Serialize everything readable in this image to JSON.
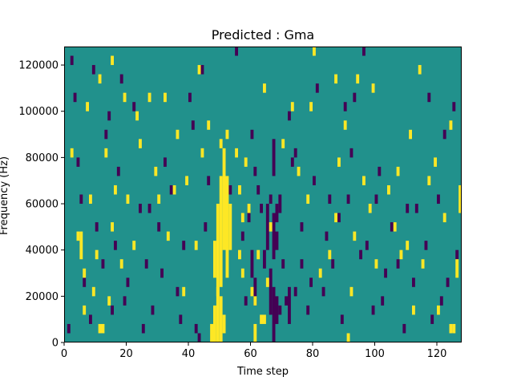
{
  "chart_data": {
    "type": "heatmap",
    "title": "Predicted : Gma",
    "xlabel": "Time step",
    "ylabel": "Frequency (Hz)",
    "xlim": [
      0,
      128
    ],
    "ylim": [
      0,
      128000
    ],
    "x_ticks": [
      0,
      20,
      40,
      60,
      80,
      100,
      120
    ],
    "y_ticks": [
      0,
      20000,
      40000,
      60000,
      80000,
      100000,
      120000
    ],
    "x_tick_labels": [
      "0",
      "20",
      "40",
      "60",
      "80",
      "100",
      "120"
    ],
    "y_tick_labels": [
      "0",
      "20000",
      "40000",
      "60000",
      "80000",
      "100000",
      "120000"
    ],
    "grid": false,
    "colors": {
      "background_value": "#21918c",
      "high_value": "#fde725",
      "low_value": "#440154"
    },
    "cell_height_hz": 4000,
    "high_cells": [
      [
        47,
        0,
        8000
      ],
      [
        48,
        0,
        16000
      ],
      [
        49,
        0,
        24000
      ],
      [
        50,
        0,
        20000
      ],
      [
        51,
        4000,
        12000
      ],
      [
        61,
        0,
        8000
      ],
      [
        48,
        28000,
        44000
      ],
      [
        49,
        20000,
        60000
      ],
      [
        50,
        24000,
        72000
      ],
      [
        51,
        40000,
        84000
      ],
      [
        52,
        28000,
        72000
      ],
      [
        53,
        40000,
        60000
      ],
      [
        50,
        84000,
        88000
      ],
      [
        52,
        88000,
        92000
      ],
      [
        55,
        80000,
        84000
      ],
      [
        56,
        64000,
        68000
      ],
      [
        56,
        36000,
        40000
      ],
      [
        57,
        52000,
        56000
      ],
      [
        57,
        28000,
        32000
      ],
      [
        58,
        76000,
        80000
      ],
      [
        59,
        56000,
        60000
      ],
      [
        60,
        20000,
        24000
      ],
      [
        61,
        16000,
        20000
      ],
      [
        63,
        8000,
        12000
      ],
      [
        64,
        8000,
        12000
      ],
      [
        2,
        80000,
        84000
      ],
      [
        4,
        44000,
        48000
      ],
      [
        6,
        12000,
        16000
      ],
      [
        6,
        28000,
        32000
      ],
      [
        8,
        60000,
        64000
      ],
      [
        9,
        20000,
        24000
      ],
      [
        10,
        36000,
        40000
      ],
      [
        11,
        4000,
        8000
      ],
      [
        12,
        4000,
        8000
      ],
      [
        13,
        80000,
        84000
      ],
      [
        14,
        16000,
        20000
      ],
      [
        15,
        48000,
        52000
      ],
      [
        16,
        64000,
        68000
      ],
      [
        18,
        32000,
        36000
      ],
      [
        20,
        60000,
        64000
      ],
      [
        22,
        40000,
        44000
      ],
      [
        24,
        84000,
        88000
      ],
      [
        27,
        104000,
        108000
      ],
      [
        29,
        72000,
        76000
      ],
      [
        30,
        60000,
        64000
      ],
      [
        33,
        44000,
        48000
      ],
      [
        35,
        64000,
        68000
      ],
      [
        36,
        88000,
        92000
      ],
      [
        38,
        20000,
        24000
      ],
      [
        39,
        68000,
        72000
      ],
      [
        42,
        40000,
        44000
      ],
      [
        44,
        80000,
        84000
      ],
      [
        46,
        92000,
        96000
      ],
      [
        62,
        36000,
        40000
      ],
      [
        65,
        24000,
        28000
      ],
      [
        66,
        48000,
        52000
      ],
      [
        70,
        84000,
        88000
      ],
      [
        75,
        72000,
        76000
      ],
      [
        78,
        60000,
        64000
      ],
      [
        79,
        100000,
        104000
      ],
      [
        80,
        124000,
        128000
      ],
      [
        82,
        28000,
        32000
      ],
      [
        85,
        36000,
        40000
      ],
      [
        87,
        52000,
        56000
      ],
      [
        88,
        76000,
        80000
      ],
      [
        90,
        92000,
        96000
      ],
      [
        91,
        0,
        4000
      ],
      [
        92,
        20000,
        24000
      ],
      [
        93,
        44000,
        48000
      ],
      [
        94,
        112000,
        116000
      ],
      [
        96,
        68000,
        72000
      ],
      [
        98,
        56000,
        60000
      ],
      [
        100,
        32000,
        36000
      ],
      [
        104,
        64000,
        68000
      ],
      [
        106,
        48000,
        52000
      ],
      [
        108,
        36000,
        40000
      ],
      [
        110,
        40000,
        44000
      ],
      [
        112,
        12000,
        16000
      ],
      [
        114,
        116000,
        120000
      ],
      [
        115,
        32000,
        36000
      ],
      [
        117,
        68000,
        72000
      ],
      [
        119,
        76000,
        80000
      ],
      [
        120,
        12000,
        16000
      ],
      [
        122,
        52000,
        56000
      ],
      [
        124,
        4000,
        8000
      ],
      [
        125,
        4000,
        8000
      ],
      [
        126,
        28000,
        36000
      ],
      [
        127,
        56000,
        68000
      ],
      [
        124,
        92000,
        96000
      ],
      [
        5,
        36000,
        48000
      ],
      [
        7,
        100000,
        104000
      ],
      [
        11,
        112000,
        116000
      ],
      [
        15,
        120000,
        124000
      ],
      [
        19,
        104000,
        108000
      ],
      [
        23,
        96000,
        100000
      ],
      [
        32,
        104000,
        108000
      ],
      [
        43,
        116000,
        120000
      ],
      [
        64,
        108000,
        112000
      ],
      [
        73,
        100000,
        104000
      ],
      [
        87,
        112000,
        116000
      ],
      [
        99,
        108000,
        112000
      ],
      [
        107,
        72000,
        76000
      ],
      [
        111,
        88000,
        92000
      ]
    ],
    "low_cells": [
      [
        42,
        4000,
        8000
      ],
      [
        43,
        0,
        4000
      ],
      [
        59,
        52000,
        60000
      ],
      [
        60,
        28000,
        40000
      ],
      [
        61,
        16000,
        28000
      ],
      [
        60,
        88000,
        92000
      ],
      [
        61,
        72000,
        76000
      ],
      [
        62,
        64000,
        68000
      ],
      [
        63,
        56000,
        60000
      ],
      [
        64,
        32000,
        40000
      ],
      [
        65,
        40000,
        60000
      ],
      [
        66,
        12000,
        32000
      ],
      [
        67,
        0,
        24000
      ],
      [
        67,
        36000,
        56000
      ],
      [
        67,
        72000,
        88000
      ],
      [
        68,
        8000,
        20000
      ],
      [
        68,
        40000,
        48000
      ],
      [
        69,
        12000,
        16000
      ],
      [
        69,
        56000,
        64000
      ],
      [
        70,
        32000,
        36000
      ],
      [
        71,
        16000,
        20000
      ],
      [
        72,
        8000,
        24000
      ],
      [
        73,
        76000,
        80000
      ],
      [
        74,
        20000,
        24000
      ],
      [
        76,
        32000,
        36000
      ],
      [
        66,
        60000,
        64000
      ],
      [
        68,
        52000,
        60000
      ],
      [
        2,
        120000,
        124000
      ],
      [
        3,
        104000,
        108000
      ],
      [
        5,
        60000,
        64000
      ],
      [
        6,
        24000,
        28000
      ],
      [
        8,
        8000,
        12000
      ],
      [
        10,
        48000,
        52000
      ],
      [
        12,
        32000,
        36000
      ],
      [
        13,
        88000,
        92000
      ],
      [
        15,
        12000,
        16000
      ],
      [
        16,
        40000,
        44000
      ],
      [
        17,
        72000,
        76000
      ],
      [
        18,
        112000,
        116000
      ],
      [
        20,
        24000,
        28000
      ],
      [
        22,
        100000,
        104000
      ],
      [
        24,
        56000,
        60000
      ],
      [
        26,
        32000,
        36000
      ],
      [
        28,
        12000,
        16000
      ],
      [
        30,
        48000,
        52000
      ],
      [
        32,
        76000,
        80000
      ],
      [
        34,
        64000,
        68000
      ],
      [
        36,
        20000,
        24000
      ],
      [
        38,
        40000,
        44000
      ],
      [
        40,
        104000,
        108000
      ],
      [
        41,
        92000,
        96000
      ],
      [
        44,
        116000,
        120000
      ],
      [
        46,
        68000,
        72000
      ],
      [
        53,
        64000,
        68000
      ],
      [
        57,
        44000,
        48000
      ],
      [
        58,
        16000,
        20000
      ],
      [
        72,
        96000,
        100000
      ],
      [
        74,
        80000,
        84000
      ],
      [
        76,
        48000,
        52000
      ],
      [
        78,
        12000,
        16000
      ],
      [
        80,
        68000,
        72000
      ],
      [
        81,
        108000,
        112000
      ],
      [
        83,
        20000,
        24000
      ],
      [
        84,
        44000,
        48000
      ],
      [
        86,
        32000,
        36000
      ],
      [
        88,
        52000,
        56000
      ],
      [
        89,
        8000,
        12000
      ],
      [
        90,
        100000,
        104000
      ],
      [
        91,
        60000,
        64000
      ],
      [
        92,
        80000,
        84000
      ],
      [
        95,
        36000,
        40000
      ],
      [
        96,
        124000,
        128000
      ],
      [
        97,
        40000,
        44000
      ],
      [
        100,
        60000,
        64000
      ],
      [
        102,
        16000,
        20000
      ],
      [
        103,
        28000,
        32000
      ],
      [
        105,
        48000,
        52000
      ],
      [
        107,
        32000,
        36000
      ],
      [
        109,
        4000,
        8000
      ],
      [
        110,
        56000,
        60000
      ],
      [
        112,
        24000,
        28000
      ],
      [
        116,
        40000,
        44000
      ],
      [
        118,
        8000,
        12000
      ],
      [
        120,
        60000,
        64000
      ],
      [
        122,
        88000,
        92000
      ],
      [
        123,
        24000,
        28000
      ],
      [
        126,
        36000,
        40000
      ],
      [
        1,
        4000,
        8000
      ],
      [
        4,
        76000,
        80000
      ],
      [
        9,
        116000,
        120000
      ],
      [
        14,
        96000,
        100000
      ],
      [
        19,
        16000,
        20000
      ],
      [
        25,
        4000,
        8000
      ],
      [
        27,
        56000,
        60000
      ],
      [
        31,
        28000,
        32000
      ],
      [
        37,
        8000,
        12000
      ],
      [
        45,
        48000,
        52000
      ],
      [
        55,
        124000,
        128000
      ],
      [
        79,
        24000,
        28000
      ],
      [
        85,
        60000,
        64000
      ],
      [
        93,
        104000,
        108000
      ],
      [
        99,
        12000,
        16000
      ],
      [
        101,
        72000,
        76000
      ],
      [
        113,
        56000,
        60000
      ],
      [
        117,
        104000,
        108000
      ],
      [
        121,
        16000,
        20000
      ],
      [
        125,
        100000,
        104000
      ]
    ]
  }
}
